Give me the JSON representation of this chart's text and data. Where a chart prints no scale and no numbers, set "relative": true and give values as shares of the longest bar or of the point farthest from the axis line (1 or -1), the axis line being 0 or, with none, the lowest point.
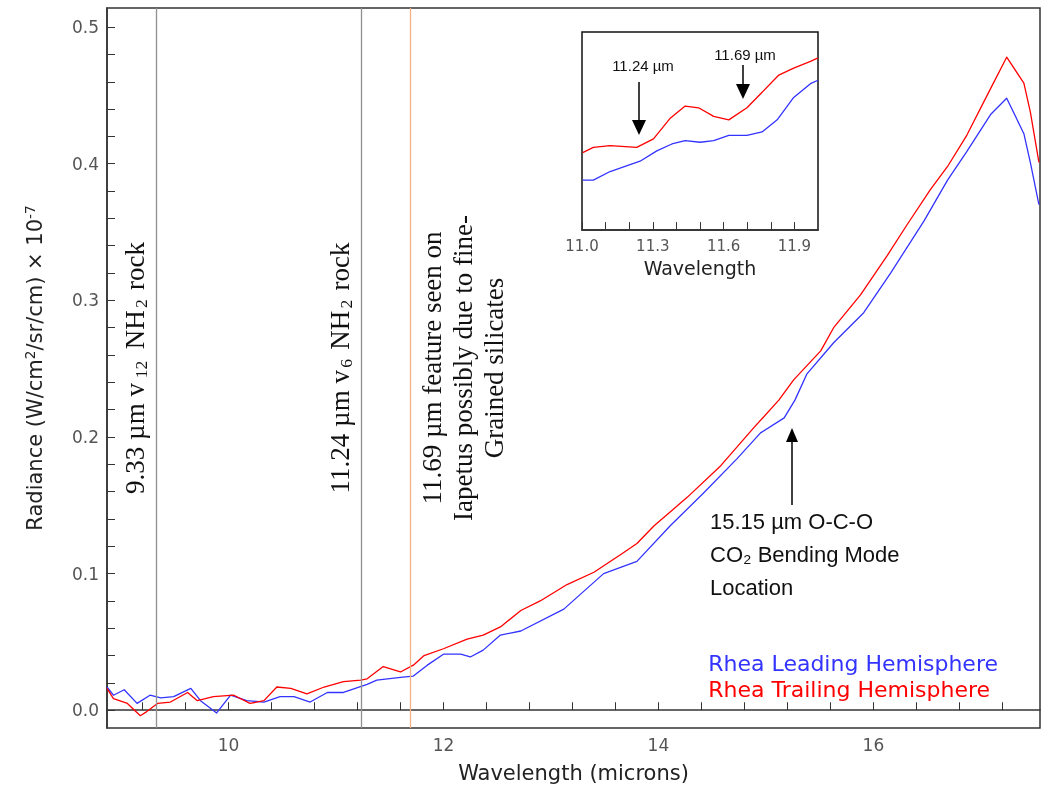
{
  "chart_data": [
    {
      "type": "line",
      "xlabel": "Wavelength (microns)",
      "ylabel": "Radiance (W/cm$^{2}$/sr/cm) × 10$^{-7}$",
      "legend": "bottom right",
      "marker": "none",
      "xlim": [
        8.87,
        17.55
      ],
      "ylim": [
        -0.013,
        0.514
      ],
      "xticks": [
        {
          "value": 9.2,
          "label": null
        },
        {
          "value": 9.6,
          "label": null
        },
        10,
        {
          "value": 10.4,
          "label": null
        },
        {
          "value": 10.8,
          "label": null
        },
        {
          "value": 11.2,
          "label": null
        },
        {
          "value": 11.6,
          "label": null
        },
        12,
        {
          "value": 12.4,
          "label": null
        },
        {
          "value": 12.8,
          "label": null
        },
        {
          "value": 13.2,
          "label": null
        },
        {
          "value": 13.6,
          "label": null
        },
        14,
        {
          "value": 14.4,
          "label": null
        },
        {
          "value": 14.8,
          "label": null
        },
        {
          "value": 15.2,
          "label": null
        },
        {
          "value": 15.6,
          "label": null
        },
        16,
        {
          "value": 16.4,
          "label": null
        },
        {
          "value": 16.8,
          "label": null
        },
        {
          "value": 17.2,
          "label": null
        }
      ],
      "yticks": [
        {
          "value": 0,
          "label": "0.0"
        },
        {
          "value": 0.02,
          "label": null
        },
        {
          "value": 0.04,
          "label": null
        },
        {
          "value": 0.06,
          "label": null
        },
        {
          "value": 0.08,
          "label": null
        },
        0.1,
        {
          "value": 0.12,
          "label": null
        },
        {
          "value": 0.14,
          "label": null
        },
        {
          "value": 0.16,
          "label": null
        },
        {
          "value": 0.18,
          "label": null
        },
        0.2,
        {
          "value": 0.22,
          "label": null
        },
        {
          "value": 0.24,
          "label": null
        },
        {
          "value": 0.26,
          "label": null
        },
        {
          "value": 0.28,
          "label": null
        },
        0.3,
        {
          "value": 0.32,
          "label": null
        },
        {
          "value": 0.34,
          "label": null
        },
        {
          "value": 0.36,
          "label": null
        },
        {
          "value": 0.38,
          "label": null
        },
        0.4,
        {
          "value": 0.42,
          "label": null
        },
        {
          "value": 0.44,
          "label": null
        },
        {
          "value": 0.46,
          "label": null
        },
        {
          "value": 0.48,
          "label": null
        },
        0.5
      ],
      "series": [
        {
          "name": "Rhea Leading Hemisphere",
          "color": "#3333ff",
          "x": [
            8.87,
            8.93,
            9.03,
            9.15,
            9.27,
            9.37,
            9.49,
            9.65,
            9.74,
            9.89,
            10.02,
            10.17,
            10.33,
            10.48,
            10.61,
            10.76,
            10.92,
            11.07,
            11.29,
            11.38,
            11.6,
            11.72,
            11.85,
            12.0,
            12.16,
            12.25,
            12.37,
            12.53,
            12.72,
            13.12,
            13.49,
            13.8,
            14.11,
            14.42,
            14.73,
            14.95,
            15.17,
            15.27,
            15.38,
            15.63,
            15.91,
            16.16,
            16.47,
            16.69,
            16.87,
            17.09,
            17.24,
            17.4,
            17.46,
            17.54
          ],
          "values": [
            0.017,
            0.011,
            0.015,
            0.005,
            0.011,
            0.009,
            0.01,
            0.016,
            0.007,
            -0.002,
            0.011,
            0.007,
            0.006,
            0.01,
            0.01,
            0.006,
            0.013,
            0.013,
            0.019,
            0.022,
            0.024,
            0.025,
            0.033,
            0.041,
            0.041,
            0.039,
            0.044,
            0.055,
            0.058,
            0.074,
            0.1,
            0.109,
            0.135,
            0.159,
            0.184,
            0.203,
            0.214,
            0.227,
            0.246,
            0.269,
            0.291,
            0.32,
            0.358,
            0.388,
            0.409,
            0.436,
            0.448,
            0.422,
            0.401,
            0.37
          ]
        },
        {
          "name": "Rhea Trailing Hemisphere",
          "color": "#ff0000",
          "x": [
            8.87,
            8.93,
            9.06,
            9.18,
            9.24,
            9.34,
            9.46,
            9.62,
            9.71,
            9.86,
            10.05,
            10.2,
            10.33,
            10.45,
            10.58,
            10.73,
            10.89,
            11.07,
            11.23,
            11.29,
            11.44,
            11.6,
            11.72,
            11.82,
            12.0,
            12.22,
            12.37,
            12.53,
            12.72,
            12.9,
            13.15,
            13.4,
            13.65,
            13.8,
            13.96,
            14.27,
            14.58,
            14.89,
            15.12,
            15.26,
            15.51,
            15.63,
            15.88,
            16.13,
            16.31,
            16.53,
            16.69,
            16.87,
            17.09,
            17.24,
            17.4,
            17.46,
            17.54
          ],
          "values": [
            0.016,
            0.0085,
            0.005,
            -0.004,
            -0.001,
            0.005,
            0.006,
            0.013,
            0.007,
            0.01,
            0.011,
            0.005,
            0.007,
            0.017,
            0.016,
            0.012,
            0.017,
            0.021,
            0.022,
            0.023,
            0.032,
            0.028,
            0.033,
            0.04,
            0.045,
            0.052,
            0.055,
            0.061,
            0.073,
            0.08,
            0.092,
            0.101,
            0.114,
            0.122,
            0.135,
            0.156,
            0.179,
            0.207,
            0.227,
            0.242,
            0.263,
            0.28,
            0.304,
            0.333,
            0.355,
            0.381,
            0.398,
            0.421,
            0.455,
            0.478,
            0.459,
            0.438,
            0.401
          ]
        }
      ],
      "ref_lines": [
        {
          "axis": "x",
          "value": 9.33,
          "label": "9.33 µm v$_{12}$ NH$_{2}$ rock",
          "color": "#909090"
        },
        {
          "axis": "x",
          "value": 11.24,
          "label": "11.24 µm v$_{6}$ NH$_{2}$ rock",
          "color": "#909090"
        },
        {
          "axis": "x",
          "value": 11.69,
          "label": "11.69 µm feature seen on\nIapetus possibly due to fine-\nGrained silicates",
          "color": "#f4b183"
        }
      ],
      "annotations": [
        "15.15 µm O-C-O\nCO₂ Bending Mode\nLocation"
      ]
    },
    {
      "type": "line",
      "xlabel": "Wavelength",
      "relative": true,
      "tick_labels": "x",
      "marker": "none",
      "xlim": [
        11.0,
        12.0
      ],
      "xticks": [
        {
          "value": 11.0,
          "label": "11.0"
        },
        {
          "value": 11.1,
          "label": null
        },
        {
          "value": 11.2,
          "label": null
        },
        {
          "value": 11.3,
          "label": "11.3"
        },
        {
          "value": 11.4,
          "label": null
        },
        {
          "value": 11.5,
          "label": null
        },
        {
          "value": 11.6,
          "label": "11.6"
        },
        {
          "value": 11.7,
          "label": null
        },
        {
          "value": 11.8,
          "label": null
        },
        {
          "value": 11.9,
          "label": "11.9"
        }
      ],
      "series": [
        {
          "color": "#ff0000",
          "x": [
            11.003,
            11.048,
            11.119,
            11.232,
            11.303,
            11.374,
            11.437,
            11.494,
            11.558,
            11.622,
            11.699,
            11.756,
            11.834,
            11.897,
            11.968,
            12.0
          ],
          "values": [
            0.45,
            0.48,
            0.49,
            0.48,
            0.53,
            0.65,
            0.72,
            0.71,
            0.66,
            0.64,
            0.71,
            0.79,
            0.9,
            0.94,
            0.98,
            1.0
          ]
        },
        {
          "color": "#3333ff",
          "x": [
            11.003,
            11.048,
            11.119,
            11.246,
            11.317,
            11.381,
            11.437,
            11.501,
            11.558,
            11.622,
            11.699,
            11.763,
            11.827,
            11.897,
            11.968,
            12.0
          ],
          "values": [
            0.29,
            0.29,
            0.34,
            0.4,
            0.46,
            0.5,
            0.52,
            0.51,
            0.52,
            0.55,
            0.55,
            0.57,
            0.64,
            0.77,
            0.85,
            0.87
          ]
        }
      ],
      "annotations": [
        "11.24 µm",
        "11.69 µm"
      ]
    }
  ]
}
